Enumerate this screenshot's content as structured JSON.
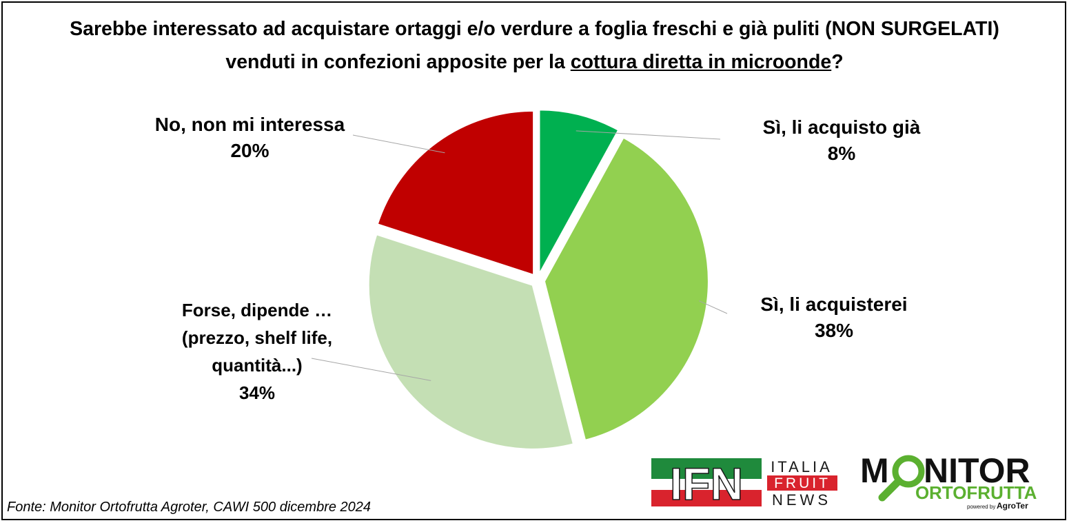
{
  "title": {
    "line1": "Sarebbe interessato ad acquistare ortaggi e/o verdure a foglia freschi e già puliti (NON SURGELATI)",
    "line2_prefix": "venduti in confezioni apposite per la ",
    "line2_underlined": "cottura diretta in microonde",
    "line2_suffix": "?"
  },
  "chart_data": {
    "type": "pie",
    "start_angle_deg": 0,
    "direction": "clockwise",
    "exploded": true,
    "slices": [
      {
        "label": "Sì, li acquisto già",
        "value": 8,
        "value_label": "8%",
        "color": "#00B050"
      },
      {
        "label": "Sì, li acquisterei",
        "value": 38,
        "value_label": "38%",
        "color": "#92D050"
      },
      {
        "label_lines": [
          "Forse, dipende …",
          "(prezzo, shelf life,",
          "quantità...)"
        ],
        "value": 34,
        "value_label": "34%",
        "color": "#C4DFB4"
      },
      {
        "label": "No, non mi interessa",
        "value": 20,
        "value_label": "20%",
        "color": "#C00000"
      }
    ],
    "leader_lines": true,
    "legend": "none"
  },
  "source": "Fonte: Monitor Ortofrutta Agroter, CAWI 500 dicembre 2024",
  "logos": {
    "ifn": {
      "mark": "IFN",
      "line1": "ITALIA",
      "line2": "FRUIT",
      "line3": "NEWS",
      "colors": {
        "green": "#1F8A3C",
        "red": "#D9232D",
        "dark": "#1A1A1A"
      }
    },
    "monitor": {
      "word1_m": "M",
      "word1_rest": "NITOR",
      "word2_o": "O",
      "word2_rest": "RTOFRUTTA",
      "powered": "powered by",
      "brand": "AgroTer",
      "colors": {
        "green": "#5BB030",
        "dark": "#111111"
      }
    }
  }
}
